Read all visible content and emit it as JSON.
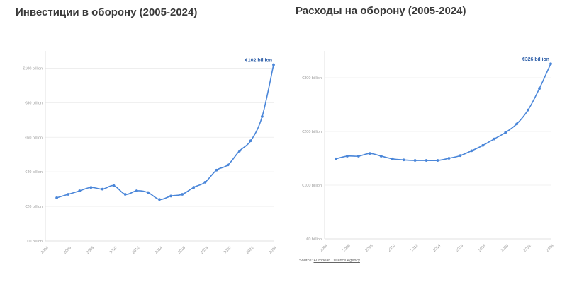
{
  "colors": {
    "line": "#4a86d9",
    "grid": "#ececec",
    "axis": "#d9d9d9",
    "tick_text": "#9a9a9a",
    "annotation": "#2d5ea8",
    "title": "#3a3a3a"
  },
  "chart_data": [
    {
      "type": "line",
      "title": "Инвестиции в оборону (2005-2024)",
      "xlabel": "",
      "ylabel": "",
      "x": [
        2005,
        2006,
        2007,
        2008,
        2009,
        2010,
        2011,
        2012,
        2013,
        2014,
        2015,
        2016,
        2017,
        2018,
        2019,
        2020,
        2021,
        2022,
        2023,
        2024
      ],
      "series": [
        {
          "values": [
            25,
            27,
            29,
            31,
            30,
            32,
            27,
            29,
            28,
            24,
            26,
            27,
            31,
            34,
            41,
            44,
            52,
            58,
            72,
            102
          ]
        }
      ],
      "xlim": [
        2004,
        2024
      ],
      "ylim": [
        0,
        110
      ],
      "x_ticks": [
        2004,
        2006,
        2008,
        2010,
        2012,
        2014,
        2016,
        2018,
        2020,
        2022,
        2024
      ],
      "y_ticks": [
        0,
        20,
        40,
        60,
        80,
        100
      ],
      "y_tick_labels": [
        "€0 billion",
        "€20 billion",
        "€40 billion",
        "€60 billion",
        "€80 billion",
        "€100 billion"
      ],
      "annotation": {
        "x": 2024,
        "y": 102,
        "text": "€102 billion"
      },
      "grid": true,
      "legend": "none"
    },
    {
      "type": "line",
      "title": "Расходы на оборону (2005-2024)",
      "xlabel": "",
      "ylabel": "",
      "x": [
        2005,
        2006,
        2007,
        2008,
        2009,
        2010,
        2011,
        2012,
        2013,
        2014,
        2015,
        2016,
        2017,
        2018,
        2019,
        2020,
        2021,
        2022,
        2023,
        2024
      ],
      "series": [
        {
          "values": [
            149,
            154,
            154,
            159,
            154,
            149,
            147,
            146,
            146,
            146,
            150,
            155,
            164,
            174,
            186,
            198,
            214,
            240,
            280,
            326
          ]
        }
      ],
      "xlim": [
        2004,
        2024
      ],
      "ylim": [
        0,
        350
      ],
      "x_ticks": [
        2004,
        2006,
        2008,
        2010,
        2012,
        2014,
        2016,
        2018,
        2020,
        2022,
        2024
      ],
      "y_ticks": [
        0,
        100,
        200,
        300
      ],
      "y_tick_labels": [
        "€0 billion",
        "€100 billion",
        "€200 billion",
        "€300 billion"
      ],
      "annotation": {
        "x": 2024,
        "y": 326,
        "text": "€326 billion"
      },
      "grid": true,
      "legend": "none",
      "source_prefix": "Source:",
      "source_link": "European Defence Agency"
    }
  ]
}
